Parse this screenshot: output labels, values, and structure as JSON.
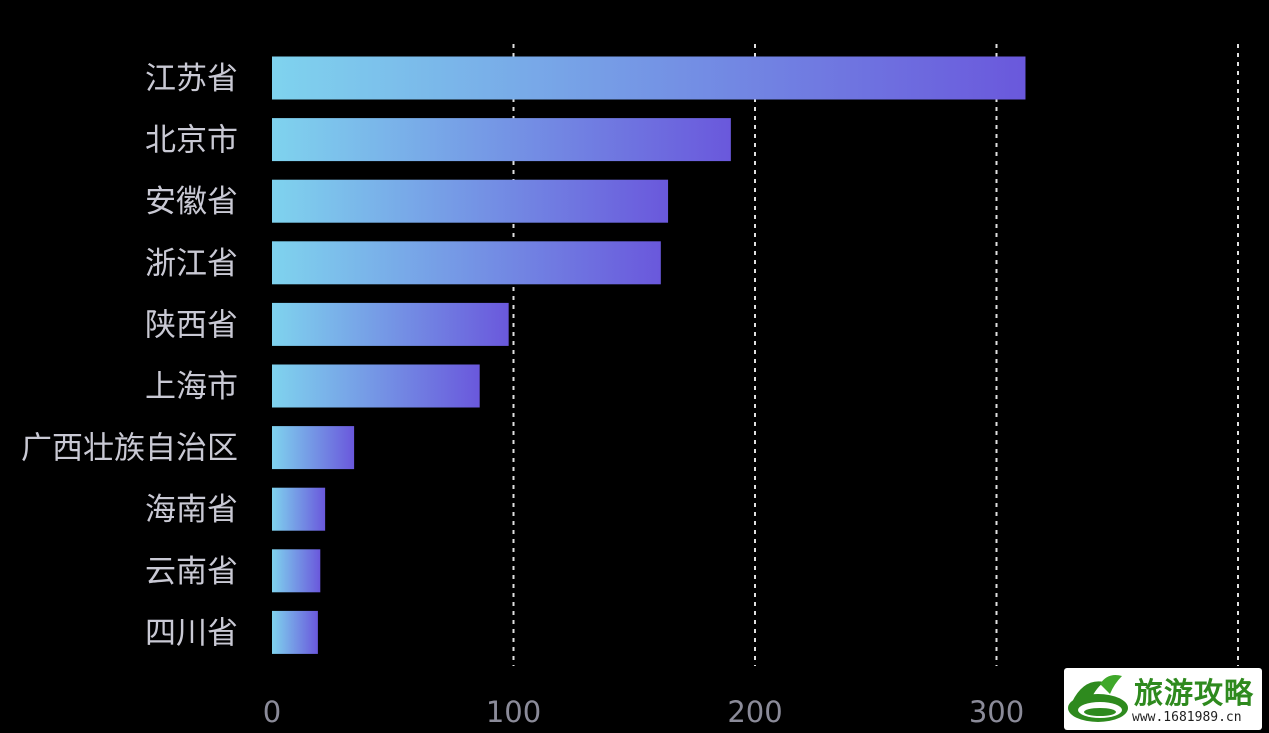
{
  "chart_data": {
    "type": "bar",
    "orientation": "horizontal",
    "categories": [
      "江苏省",
      "北京市",
      "安徽省",
      "浙江省",
      "陕西省",
      "上海市",
      "广西壮族自治区",
      "海南省",
      "云南省",
      "四川省"
    ],
    "values": [
      312,
      190,
      164,
      161,
      98,
      86,
      34,
      22,
      20,
      19
    ],
    "title": "",
    "xlabel": "",
    "ylabel": "",
    "xlim": [
      0,
      400
    ],
    "xticks": [
      0,
      100,
      200,
      300
    ],
    "xtick_labels": [
      "0",
      "100",
      "200",
      "300"
    ],
    "grid": "vertical dashed",
    "legend": "none",
    "colors": {
      "background": "#000000",
      "bar_gradient_start": "#7fd3ee",
      "bar_gradient_end": "#6a58dc",
      "grid": "#e0e0e0",
      "category_label": "#c9c9d4",
      "tick_label": "#8b8b99"
    }
  },
  "watermark": {
    "title": "旅游攻略",
    "url": "www.1681989.cn"
  }
}
